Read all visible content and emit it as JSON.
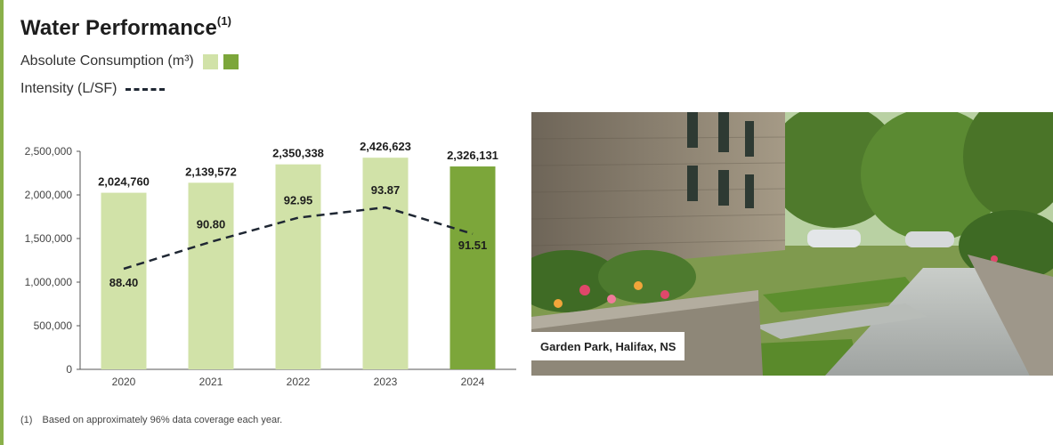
{
  "title": "Water Performance",
  "title_superscript": "(1)",
  "legend": {
    "absolute_label": "Absolute Consumption (m³)",
    "intensity_label": "Intensity (L/SF)"
  },
  "colors": {
    "bar_light": "#d1e2a8",
    "bar_dark": "#7ca63a",
    "line": "#1f2733",
    "accent_rule": "#8ab04a"
  },
  "chart_data": {
    "type": "bar",
    "categories": [
      "2020",
      "2021",
      "2022",
      "2023",
      "2024"
    ],
    "series": [
      {
        "name": "Absolute Consumption (m³)",
        "values": [
          2024760,
          2139572,
          2350338,
          2426623,
          2326131
        ],
        "labels": [
          "2,024,760",
          "2,139,572",
          "2,350,338",
          "2,426,623",
          "2,326,131"
        ]
      },
      {
        "name": "Intensity (L/SF)",
        "type": "line",
        "values": [
          88.4,
          90.8,
          92.95,
          93.87,
          91.51
        ],
        "labels": [
          "88.40",
          "90.80",
          "92.95",
          "93.87",
          "91.51"
        ]
      }
    ],
    "highlight_category": "2024",
    "ylim": [
      0,
      2500000
    ],
    "yticks": [
      0,
      500000,
      1000000,
      1500000,
      2000000,
      2500000
    ],
    "ytick_labels": [
      "0",
      "500,000",
      "1,000,000",
      "1,500,000",
      "2,000,000",
      "2,500,000"
    ],
    "grid": false
  },
  "photo": {
    "caption": "Garden Park, Halifax, NS"
  },
  "footnote": {
    "marker": "(1)",
    "text": "Based on approximately 96% data coverage each year."
  }
}
